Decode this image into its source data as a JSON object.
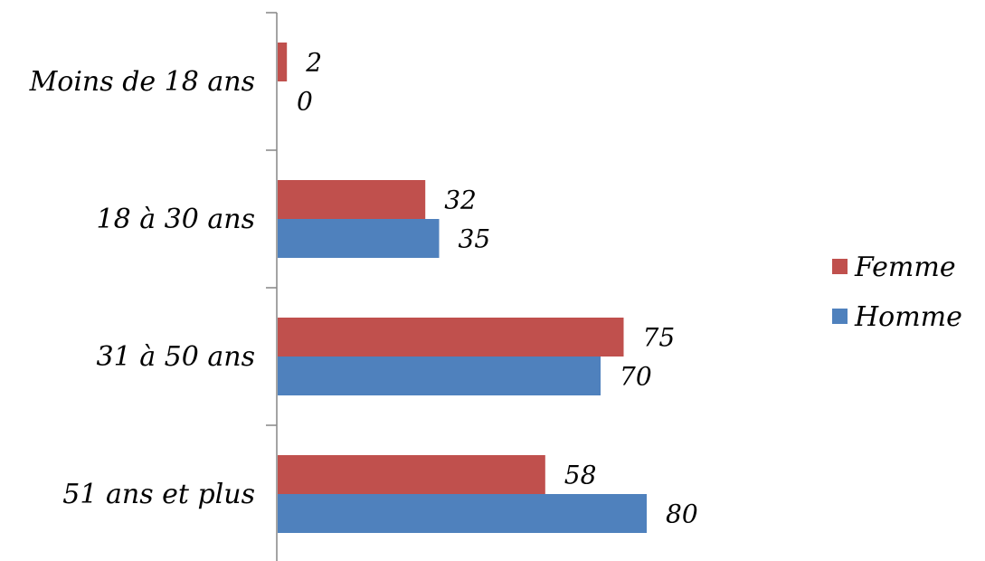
{
  "chart_data": {
    "type": "bar",
    "orientation": "horizontal",
    "categories": [
      "Moins de 18 ans",
      "18 à 30 ans",
      "31 à 50 ans",
      "51 ans et plus"
    ],
    "series": [
      {
        "name": "Femme",
        "color": "#C0504D",
        "values": [
          2,
          32,
          75,
          58
        ]
      },
      {
        "name": "Homme",
        "color": "#4F81BD",
        "values": [
          0,
          35,
          70,
          80
        ]
      }
    ],
    "xlim": [
      0,
      85
    ],
    "grid": false,
    "legend_position": "right",
    "data_labels": true
  }
}
